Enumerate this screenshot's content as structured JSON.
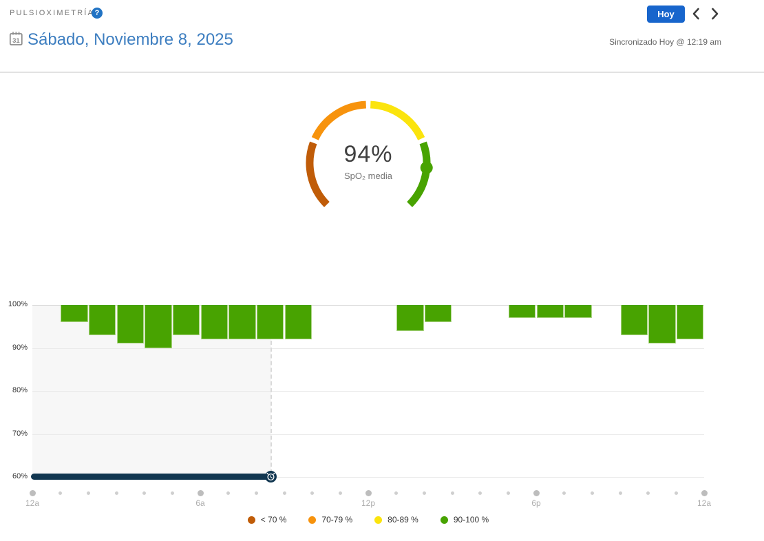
{
  "header": {
    "title": "PULSIOXIMETRÍA",
    "help_icon_label": "?",
    "today_button_label": "Hoy",
    "calendar_day": "31",
    "date_title": "Sábado, Noviembre 8, 2025",
    "sync_status": "Sincronizado Hoy @ 12:19 am"
  },
  "colors": {
    "accent_blue": "#1765cc",
    "link_blue": "#3d7ec0",
    "green": "#48a301",
    "yellow": "#fbe40d",
    "orange": "#f7930d",
    "dark_orange": "#c05c08",
    "sleep_navy": "#113650"
  },
  "gauge": {
    "value": 94,
    "value_label": "94%",
    "sublabel": "SpO₂ media",
    "min": 60,
    "max": 100,
    "start_angle": -135,
    "end_angle": 135,
    "marker_color": "#48a301",
    "segments": [
      {
        "range": "< 70 %",
        "from": 60,
        "to": 70,
        "color": "#c05c08"
      },
      {
        "range": "70-79 %",
        "from": 70,
        "to": 80,
        "color": "#f7930d"
      },
      {
        "range": "80-89 %",
        "from": 80,
        "to": 90,
        "color": "#fbe40d"
      },
      {
        "range": "90-100 %",
        "from": 90,
        "to": 100,
        "color": "#48a301"
      }
    ]
  },
  "chart_data": {
    "type": "bar",
    "unit": "%",
    "ylim": [
      60,
      100
    ],
    "hours_total": 24,
    "grid": true,
    "legend_position": "bottom",
    "bar_color": "#48a301",
    "bar_border_color": "#aed487",
    "yticks": [
      {
        "value": 100,
        "label": "100%"
      },
      {
        "value": 90,
        "label": "90%"
      },
      {
        "value": 80,
        "label": "80%"
      },
      {
        "value": 70,
        "label": "70%"
      },
      {
        "value": 60,
        "label": "60%"
      }
    ],
    "xticks": [
      {
        "hour": 0,
        "label": "12a"
      },
      {
        "hour": 6,
        "label": "6a"
      },
      {
        "hour": 12,
        "label": "12p"
      },
      {
        "hour": 18,
        "label": "6p"
      },
      {
        "hour": 24,
        "label": "12a"
      }
    ],
    "series": [
      {
        "points": [
          {
            "hour": 1,
            "value": 96
          },
          {
            "hour": 2,
            "value": 93
          },
          {
            "hour": 3,
            "value": 91
          },
          {
            "hour": 4,
            "value": 90
          },
          {
            "hour": 5,
            "value": 93
          },
          {
            "hour": 6,
            "value": 92
          },
          {
            "hour": 7,
            "value": 92
          },
          {
            "hour": 8,
            "value": 92
          },
          {
            "hour": 9,
            "value": 92
          },
          {
            "hour": 13,
            "value": 94
          },
          {
            "hour": 14,
            "value": 96
          },
          {
            "hour": 17,
            "value": 97
          },
          {
            "hour": 18,
            "value": 97
          },
          {
            "hour": 19,
            "value": 97
          },
          {
            "hour": 21,
            "value": 93
          },
          {
            "hour": 22,
            "value": 91
          },
          {
            "hour": 23,
            "value": 92
          }
        ]
      }
    ],
    "sleep_span": {
      "start_hour": 0,
      "end_hour": 8.53,
      "bar_color": "#113650",
      "region_color": "#f7f7f7"
    },
    "legend": [
      {
        "label": "< 70 %",
        "color": "#c05c08"
      },
      {
        "label": "70-79 %",
        "color": "#f7930d"
      },
      {
        "label": "80-89 %",
        "color": "#fbe40d"
      },
      {
        "label": "90-100 %",
        "color": "#48a301"
      }
    ]
  }
}
